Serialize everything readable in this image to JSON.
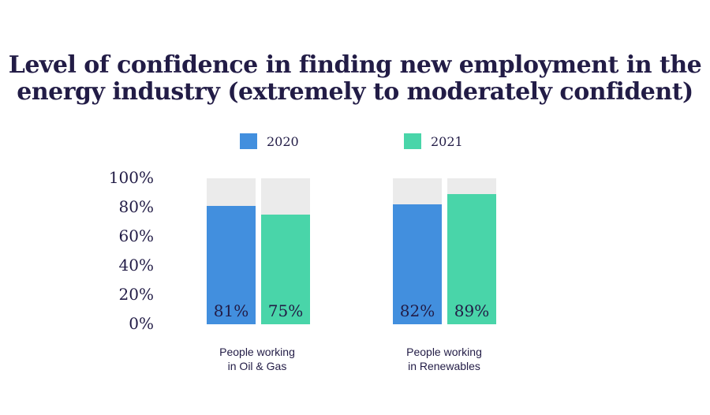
{
  "title_lines": [
    "Level of confidence in finding new employment in the",
    "energy industry (extremely to moderately confident)"
  ],
  "colors": {
    "2020": "#428fde",
    "2021": "#49d5a9",
    "track": "#ebebeb",
    "text": "#221c46"
  },
  "chart_data": {
    "type": "bar",
    "categories": [
      [
        "People working",
        "in Oil & Gas"
      ],
      [
        "People working",
        "in Renewables"
      ]
    ],
    "series": [
      {
        "name": "2020",
        "values": [
          81,
          82
        ],
        "labels": [
          "81%",
          "82%"
        ]
      },
      {
        "name": "2021",
        "values": [
          75,
          89
        ],
        "labels": [
          "75%",
          "89%"
        ]
      }
    ],
    "yticks": [
      "100%",
      "80%",
      "60%",
      "40%",
      "20%",
      "0%"
    ],
    "ylim": [
      0,
      100
    ],
    "legend": "top"
  }
}
